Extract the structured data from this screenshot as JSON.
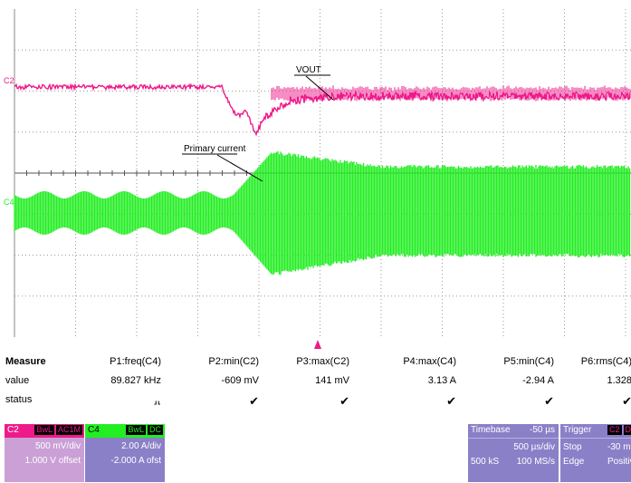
{
  "screen": {
    "annotations": {
      "vout": "VOUT",
      "primary": "Primary current"
    },
    "channel_tags": {
      "c2": "C2",
      "c4": "C4"
    },
    "colors": {
      "c2": "#ee1a8a",
      "c4": "#22ee22",
      "grid": "#9a9a9a",
      "trigger": "#ee1a8a"
    }
  },
  "measure": {
    "header_label": "Measure",
    "value_label": "value",
    "status_label": "status",
    "params": [
      {
        "name": "P1:freq(C4)",
        "value": "89.827 kHz",
        "status": "⸥⸤"
      },
      {
        "name": "P2:min(C2)",
        "value": "-609 mV",
        "status": "✔"
      },
      {
        "name": "P3:max(C2)",
        "value": "141 mV",
        "status": "✔"
      },
      {
        "name": "P4:max(C4)",
        "value": "3.13 A",
        "status": "✔"
      },
      {
        "name": "P5:min(C4)",
        "value": "-2.94 A",
        "status": "✔"
      },
      {
        "name": "P6:rms(C4)",
        "value": "1.328",
        "status": "✔"
      }
    ]
  },
  "channels": {
    "c2": {
      "label": "C2",
      "badge1": "BwL",
      "badge2": "AC1M",
      "scale": "500 mV/div",
      "offset": "1.000 V offset",
      "color": "#ee1a8a",
      "panel": "#caa0d6"
    },
    "c4": {
      "label": "C4",
      "badge1": "BwL",
      "badge2": "DC",
      "scale": "2.00 A/div",
      "offset": "-2.000 A ofst",
      "color": "#22ee22",
      "panel": "#8a80c8"
    }
  },
  "timebase": {
    "label": "Timebase",
    "delay": "-50 µs",
    "per_div": "500 µs/div",
    "samples": "500 kS",
    "rate": "100 MS/s"
  },
  "trigger": {
    "label": "Trigger",
    "badge": "C2",
    "badge2": "D",
    "level": "-30 m",
    "mode": "Stop",
    "type": "Edge",
    "slope": "Positiv"
  }
}
